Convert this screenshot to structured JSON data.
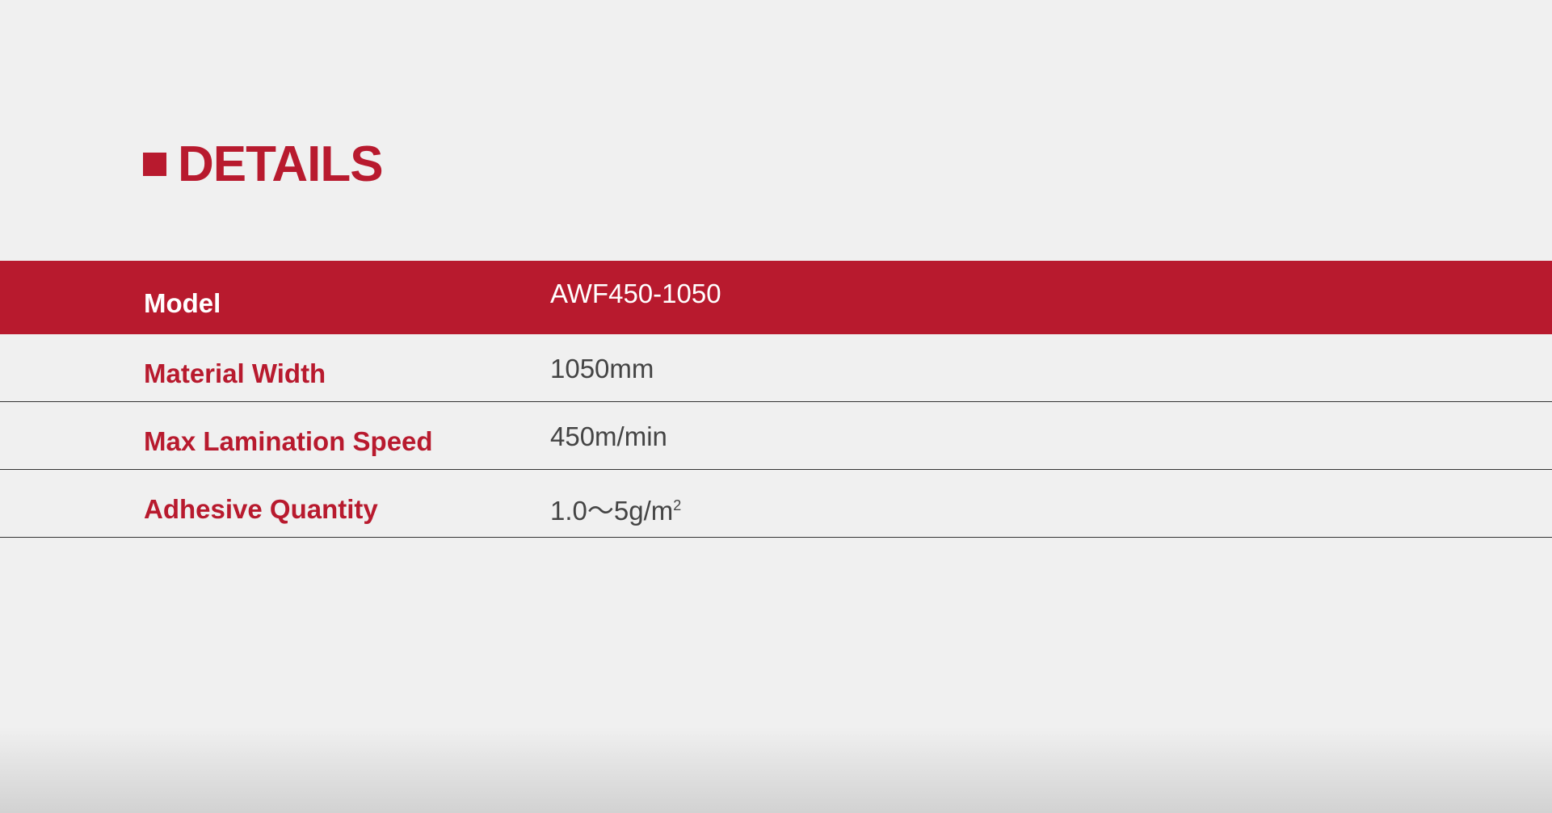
{
  "colors": {
    "accent": "#b81a2e",
    "background": "#f0f0f0"
  },
  "section": {
    "title": "DETAILS",
    "icon": "square-bullet-icon"
  },
  "table": {
    "rows": [
      {
        "label": "Model",
        "value": "AWF450-1050"
      },
      {
        "label": "Material Width",
        "value": "1050mm"
      },
      {
        "label": "Max Lamination Speed",
        "value": "450m/min"
      },
      {
        "label": "Adhesive Quantity",
        "value": "1.0～5g/m",
        "value_sup": "2"
      }
    ]
  }
}
